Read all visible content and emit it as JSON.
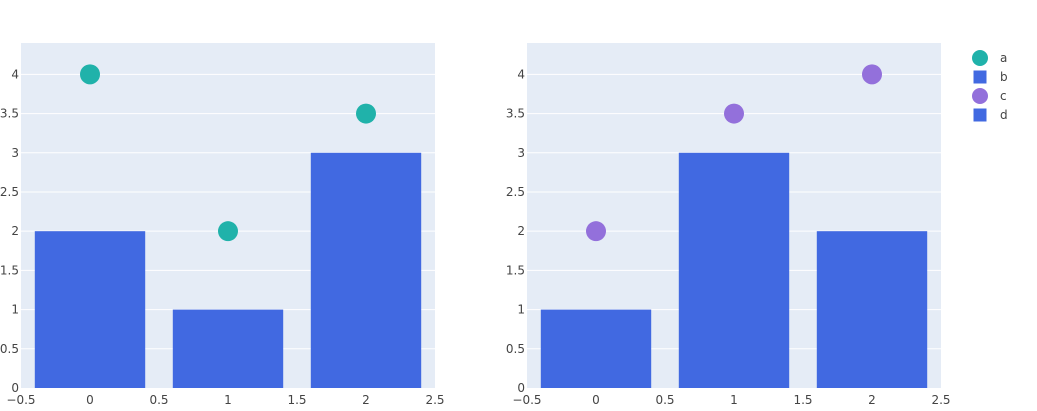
{
  "chart_data": [
    {
      "type": "bar",
      "categories": [
        0,
        1,
        2
      ],
      "xlim": [
        -0.5,
        2.5
      ],
      "ylim": [
        0,
        4.4
      ],
      "x_ticks": [
        "−0.5",
        "0",
        "0.5",
        "1",
        "1.5",
        "2",
        "2.5"
      ],
      "x_tick_values": [
        -0.5,
        0,
        0.5,
        1,
        1.5,
        2,
        2.5
      ],
      "y_ticks": [
        "0",
        "0.5",
        "1",
        "1.5",
        "2",
        "2.5",
        "3",
        "3.5",
        "4"
      ],
      "y_tick_values": [
        0,
        0.5,
        1,
        1.5,
        2,
        2.5,
        3,
        3.5,
        4
      ],
      "grid": true,
      "series": [
        {
          "name": "a",
          "kind": "scatter",
          "x": [
            0,
            1,
            2
          ],
          "values": [
            4,
            2,
            3.5
          ],
          "color": "#20b2aa"
        },
        {
          "name": "b",
          "kind": "bar",
          "x": [
            0,
            1,
            2
          ],
          "values": [
            2,
            1,
            3
          ],
          "color": "#4169e1"
        }
      ]
    },
    {
      "type": "bar",
      "categories": [
        0,
        1,
        2
      ],
      "xlim": [
        -0.5,
        2.5
      ],
      "ylim": [
        0,
        4.4
      ],
      "x_ticks": [
        "−0.5",
        "0",
        "0.5",
        "1",
        "1.5",
        "2",
        "2.5"
      ],
      "x_tick_values": [
        -0.5,
        0,
        0.5,
        1,
        1.5,
        2,
        2.5
      ],
      "y_ticks": [
        "0",
        "0.5",
        "1",
        "1.5",
        "2",
        "2.5",
        "3",
        "3.5",
        "4"
      ],
      "y_tick_values": [
        0,
        0.5,
        1,
        1.5,
        2,
        2.5,
        3,
        3.5,
        4
      ],
      "grid": true,
      "series": [
        {
          "name": "c",
          "kind": "scatter",
          "x": [
            0,
            1,
            2
          ],
          "values": [
            2,
            3.5,
            4
          ],
          "color": "#9370db"
        },
        {
          "name": "d",
          "kind": "bar",
          "x": [
            0,
            1,
            2
          ],
          "values": [
            1,
            3,
            2
          ],
          "color": "#4169e1"
        }
      ]
    }
  ],
  "legend": {
    "placement": "top-right",
    "items": [
      {
        "label": "a",
        "symbol": "circle",
        "color": "#20b2aa"
      },
      {
        "label": "b",
        "symbol": "square",
        "color": "#4169e1"
      },
      {
        "label": "c",
        "symbol": "circle",
        "color": "#9370db"
      },
      {
        "label": "d",
        "symbol": "square",
        "color": "#4169e1"
      }
    ]
  },
  "colors": {
    "plot_background": "#e5ecf6",
    "gridline": "#ffffff",
    "tick_text": "#444444"
  }
}
